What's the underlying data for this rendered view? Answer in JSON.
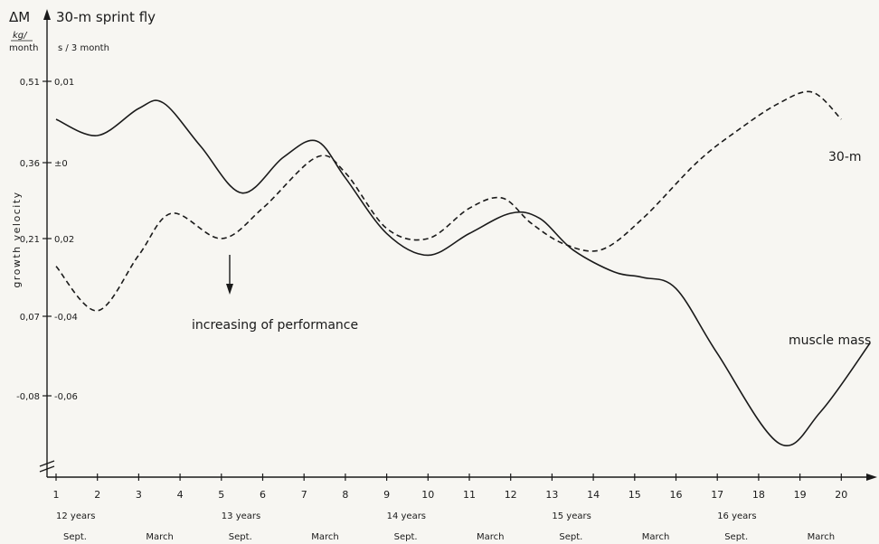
{
  "chart_data": {
    "type": "line",
    "x_ticks": [
      "1",
      "2",
      "3",
      "4",
      "5",
      "6",
      "7",
      "8",
      "9",
      "10",
      "11",
      "12",
      "13",
      "14",
      "15",
      "16",
      "17",
      "18",
      "19",
      "20"
    ],
    "x_ages": [
      {
        "at": 1,
        "label": "12 years"
      },
      {
        "at": 5,
        "label": "13 years"
      },
      {
        "at": 9,
        "label": "14 years"
      },
      {
        "at": 13,
        "label": "15 years"
      },
      {
        "at": 17,
        "label": "16 years"
      }
    ],
    "x_months": [
      {
        "at": 1,
        "label": "Sept."
      },
      {
        "at": 3,
        "label": "March"
      },
      {
        "at": 5,
        "label": "Sept."
      },
      {
        "at": 7,
        "label": "March"
      },
      {
        "at": 9,
        "label": "Sept."
      },
      {
        "at": 11,
        "label": "March"
      },
      {
        "at": 13,
        "label": "Sept."
      },
      {
        "at": 15,
        "label": "March"
      },
      {
        "at": 17,
        "label": "Sept."
      },
      {
        "at": 19,
        "label": "March"
      }
    ],
    "y_left_label": "ΔM",
    "y_left_units": "kg/\nmonth",
    "y_right_label": "30-m sprint fly",
    "y_right_units": "s / 3 month",
    "y_axis_title": "growth velocity",
    "y_ticks": [
      {
        "left": "0,51",
        "right": "0,01"
      },
      {
        "left": "0,36",
        "right": "±0"
      },
      {
        "left": "0,21",
        "right": "0,02"
      },
      {
        "left": "0,07",
        "right": "-0,04"
      },
      {
        "left": "-0,08",
        "right": "-0,06"
      }
    ],
    "ylim": [
      -0.22,
      0.58
    ],
    "series": [
      {
        "name": "muscle mass",
        "style": "solid",
        "x": [
          1,
          2,
          3,
          3.6,
          4.5,
          5.5,
          6.5,
          7.3,
          8,
          9,
          10,
          11,
          12,
          12.7,
          13.5,
          14.5,
          15.2,
          16,
          17,
          18.5,
          19.5,
          20.7
        ],
        "y": [
          0.44,
          0.41,
          0.46,
          0.47,
          0.39,
          0.3,
          0.37,
          0.4,
          0.33,
          0.22,
          0.18,
          0.22,
          0.26,
          0.25,
          0.19,
          0.15,
          0.14,
          0.12,
          0.0,
          -0.17,
          -0.11,
          0.02
        ]
      },
      {
        "name": "30-m",
        "style": "dashed",
        "x": [
          1,
          2,
          3,
          3.8,
          5,
          6,
          7.3,
          8,
          9,
          10,
          11,
          11.8,
          12.5,
          13.3,
          14.2,
          15.2,
          16.5,
          17.5,
          18.5,
          19.3,
          20
        ],
        "y": [
          0.16,
          0.08,
          0.18,
          0.26,
          0.21,
          0.27,
          0.37,
          0.34,
          0.23,
          0.21,
          0.27,
          0.29,
          0.24,
          0.2,
          0.19,
          0.25,
          0.36,
          0.42,
          0.47,
          0.49,
          0.44
        ]
      }
    ],
    "annotation": "increasing of performance",
    "xlim": [
      0.95,
      20.95
    ]
  }
}
